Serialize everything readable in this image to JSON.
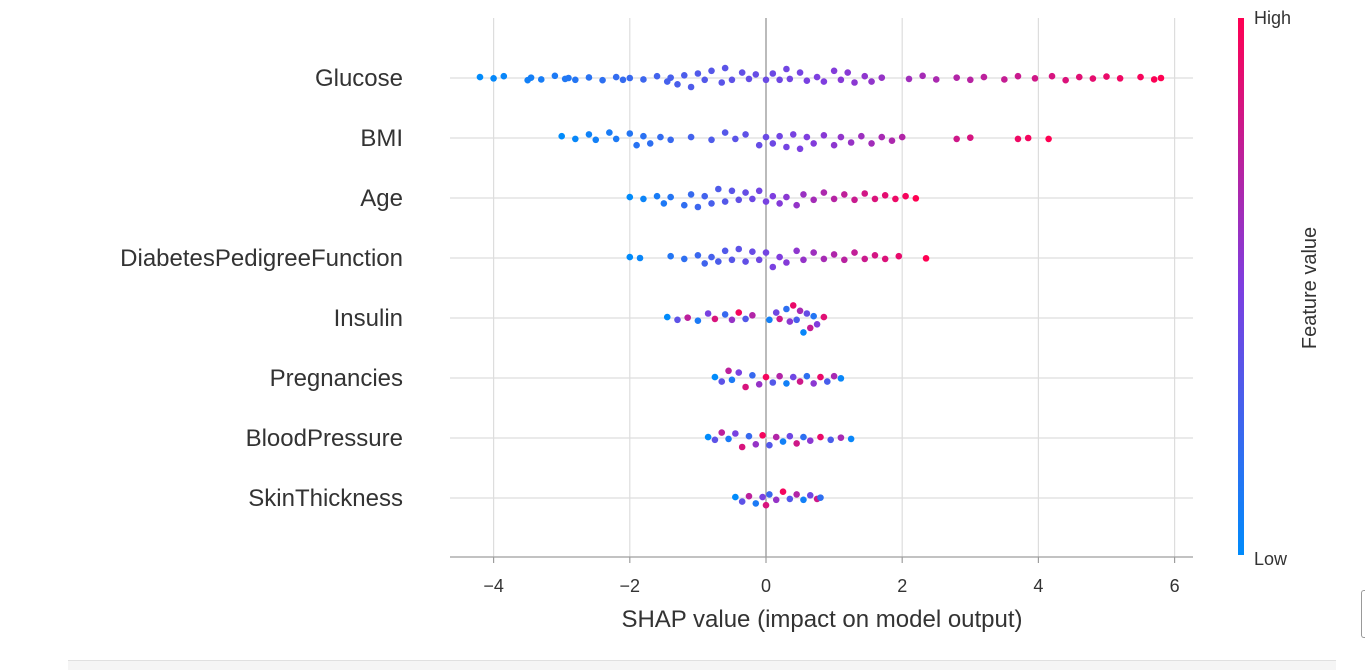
{
  "chart_data": {
    "type": "scatter",
    "subtype": "shap-beeswarm",
    "title": "",
    "xlabel": "SHAP value (impact on model output)",
    "ylabel": "",
    "xlim": [
      -4.6,
      6.35
    ],
    "xticks": [
      -4,
      -2,
      0,
      2,
      4,
      6
    ],
    "xtick_labels": [
      "−4",
      "−2",
      "0",
      "2",
      "4",
      "6"
    ],
    "features": [
      "Glucose",
      "BMI",
      "Age",
      "DiabetesPedigreeFunction",
      "Insulin",
      "Pregnancies",
      "BloodPressure",
      "SkinThickness"
    ],
    "colorbar": {
      "title": "Feature value",
      "high_label": "High",
      "low_label": "Low",
      "low_color": "#008bfb",
      "high_color": "#ff0052"
    },
    "grid": true,
    "series": [
      {
        "feature": "Glucose",
        "points": [
          [
            -4.2,
            0.05
          ],
          [
            -4.0,
            0.02
          ],
          [
            -3.85,
            0.1
          ],
          [
            -3.5,
            0.12
          ],
          [
            -3.45,
            0.02
          ],
          [
            -3.3,
            0.08
          ],
          [
            -3.1,
            0.12
          ],
          [
            -2.95,
            0.05
          ],
          [
            -2.9,
            0.0
          ],
          [
            -2.8,
            0.1
          ],
          [
            -2.6,
            0.03
          ],
          [
            -2.4,
            0.12
          ],
          [
            -2.2,
            0.05
          ],
          [
            -2.1,
            0.1
          ],
          [
            -2.0,
            0.0
          ],
          [
            -1.8,
            0.08
          ],
          [
            -1.6,
            0.1
          ],
          [
            -1.45,
            0.2
          ],
          [
            -1.4,
            0.02
          ],
          [
            -1.3,
            0.35
          ],
          [
            -1.2,
            0.15
          ],
          [
            -1.1,
            0.5
          ],
          [
            -1.0,
            0.25
          ],
          [
            -0.9,
            0.1
          ],
          [
            -0.8,
            0.4
          ],
          [
            -0.65,
            0.25
          ],
          [
            -0.6,
            0.55
          ],
          [
            -0.5,
            0.1
          ],
          [
            -0.35,
            0.3
          ],
          [
            -0.25,
            0.05
          ],
          [
            -0.15,
            0.2
          ],
          [
            0.0,
            0.1
          ],
          [
            0.1,
            0.25
          ],
          [
            0.2,
            0.1
          ],
          [
            0.3,
            0.5
          ],
          [
            0.35,
            0.05
          ],
          [
            0.5,
            0.3
          ],
          [
            0.6,
            0.15
          ],
          [
            0.75,
            0.05
          ],
          [
            0.85,
            0.2
          ],
          [
            1.0,
            0.4
          ],
          [
            1.1,
            0.1
          ],
          [
            1.2,
            0.3
          ],
          [
            1.3,
            0.25
          ],
          [
            1.45,
            0.1
          ],
          [
            1.55,
            0.2
          ],
          [
            1.7,
            0.02
          ],
          [
            2.1,
            0.05
          ],
          [
            2.3,
            0.12
          ],
          [
            2.5,
            0.08
          ],
          [
            2.8,
            0.02
          ],
          [
            3.0,
            0.1
          ],
          [
            3.2,
            0.05
          ],
          [
            3.5,
            0.08
          ],
          [
            3.7,
            0.1
          ],
          [
            3.95,
            0.02
          ],
          [
            4.2,
            0.1
          ],
          [
            4.4,
            0.12
          ],
          [
            4.6,
            0.05
          ],
          [
            4.8,
            0.03
          ],
          [
            5.0,
            0.08
          ],
          [
            5.2,
            0.02
          ],
          [
            5.5,
            0.05
          ],
          [
            5.7,
            0.08
          ],
          [
            5.8,
            0.0
          ]
        ]
      },
      {
        "feature": "BMI",
        "points": [
          [
            -3.0,
            0.1
          ],
          [
            -2.8,
            0.05
          ],
          [
            -2.6,
            0.2
          ],
          [
            -2.5,
            0.1
          ],
          [
            -2.3,
            0.3
          ],
          [
            -2.2,
            0.05
          ],
          [
            -2.0,
            0.25
          ],
          [
            -1.9,
            0.4
          ],
          [
            -1.8,
            0.1
          ],
          [
            -1.7,
            0.3
          ],
          [
            -1.55,
            0.05
          ],
          [
            -1.4,
            0.1
          ],
          [
            -1.1,
            0.05
          ],
          [
            -0.8,
            0.1
          ],
          [
            -0.6,
            0.3
          ],
          [
            -0.45,
            0.05
          ],
          [
            -0.3,
            0.2
          ],
          [
            -0.1,
            0.4
          ],
          [
            0.0,
            0.05
          ],
          [
            0.1,
            0.3
          ],
          [
            0.2,
            0.1
          ],
          [
            0.3,
            0.5
          ],
          [
            0.4,
            0.2
          ],
          [
            0.5,
            0.6
          ],
          [
            0.6,
            0.05
          ],
          [
            0.7,
            0.3
          ],
          [
            0.85,
            0.15
          ],
          [
            1.0,
            0.4
          ],
          [
            1.1,
            0.05
          ],
          [
            1.25,
            0.25
          ],
          [
            1.4,
            0.1
          ],
          [
            1.55,
            0.3
          ],
          [
            1.7,
            0.05
          ],
          [
            1.85,
            0.15
          ],
          [
            2.0,
            0.05
          ],
          [
            2.8,
            0.05
          ],
          [
            3.0,
            0.02
          ],
          [
            3.7,
            0.05
          ],
          [
            3.85,
            0.0
          ],
          [
            4.15,
            0.05
          ]
        ]
      },
      {
        "feature": "Age",
        "points": [
          [
            -2.0,
            0.05
          ],
          [
            -1.8,
            0.05
          ],
          [
            -1.6,
            0.1
          ],
          [
            -1.5,
            0.3
          ],
          [
            -1.4,
            0.05
          ],
          [
            -1.2,
            0.4
          ],
          [
            -1.1,
            0.2
          ],
          [
            -1.0,
            0.5
          ],
          [
            -0.9,
            0.1
          ],
          [
            -0.8,
            0.3
          ],
          [
            -0.7,
            0.5
          ],
          [
            -0.6,
            0.2
          ],
          [
            -0.5,
            0.4
          ],
          [
            -0.4,
            0.1
          ],
          [
            -0.3,
            0.3
          ],
          [
            -0.2,
            0.05
          ],
          [
            -0.1,
            0.4
          ],
          [
            0.0,
            0.2
          ],
          [
            0.1,
            0.1
          ],
          [
            0.2,
            0.3
          ],
          [
            0.3,
            0.05
          ],
          [
            0.45,
            0.4
          ],
          [
            0.55,
            0.2
          ],
          [
            0.7,
            0.1
          ],
          [
            0.85,
            0.3
          ],
          [
            1.0,
            0.05
          ],
          [
            1.15,
            0.2
          ],
          [
            1.3,
            0.1
          ],
          [
            1.45,
            0.25
          ],
          [
            1.6,
            0.05
          ],
          [
            1.75,
            0.15
          ],
          [
            1.9,
            0.05
          ],
          [
            2.05,
            0.1
          ],
          [
            2.2,
            0.02
          ]
        ]
      },
      {
        "feature": "DiabetesPedigreeFunction",
        "points": [
          [
            -2.0,
            0.05
          ],
          [
            -1.85,
            0.0
          ],
          [
            -1.4,
            0.1
          ],
          [
            -1.2,
            0.05
          ],
          [
            -1.0,
            0.15
          ],
          [
            -0.9,
            0.3
          ],
          [
            -0.8,
            0.05
          ],
          [
            -0.7,
            0.2
          ],
          [
            -0.6,
            0.4
          ],
          [
            -0.5,
            0.1
          ],
          [
            -0.4,
            0.5
          ],
          [
            -0.3,
            0.2
          ],
          [
            -0.2,
            0.35
          ],
          [
            -0.1,
            0.1
          ],
          [
            0.0,
            0.3
          ],
          [
            0.1,
            0.5
          ],
          [
            0.2,
            0.05
          ],
          [
            0.3,
            0.25
          ],
          [
            0.45,
            0.4
          ],
          [
            0.55,
            0.1
          ],
          [
            0.7,
            0.3
          ],
          [
            0.85,
            0.05
          ],
          [
            1.0,
            0.2
          ],
          [
            1.15,
            0.1
          ],
          [
            1.3,
            0.3
          ],
          [
            1.45,
            0.05
          ],
          [
            1.6,
            0.15
          ],
          [
            1.75,
            0.05
          ],
          [
            1.95,
            0.1
          ],
          [
            2.35,
            0.02
          ]
        ]
      },
      {
        "feature": "Insulin",
        "points": [
          [
            -1.45,
            0.05
          ],
          [
            -1.3,
            0.1
          ],
          [
            -1.15,
            0.02
          ],
          [
            -1.0,
            0.15
          ],
          [
            -0.85,
            0.25
          ],
          [
            -0.75,
            0.05
          ],
          [
            -0.6,
            0.2
          ],
          [
            -0.5,
            0.1
          ],
          [
            -0.4,
            0.3
          ],
          [
            -0.3,
            0.05
          ],
          [
            -0.2,
            0.15
          ],
          [
            0.05,
            0.1
          ],
          [
            0.15,
            0.3
          ],
          [
            0.2,
            0.05
          ],
          [
            0.3,
            0.5
          ],
          [
            0.35,
            0.2
          ],
          [
            0.4,
            0.7
          ],
          [
            0.45,
            0.1
          ],
          [
            0.5,
            0.4
          ],
          [
            0.55,
            0.8
          ],
          [
            0.6,
            0.25
          ],
          [
            0.65,
            0.55
          ],
          [
            0.7,
            0.1
          ],
          [
            0.75,
            0.35
          ],
          [
            0.85,
            0.05
          ]
        ]
      },
      {
        "feature": "Pregnancies",
        "points": [
          [
            -0.75,
            0.05
          ],
          [
            -0.65,
            0.2
          ],
          [
            -0.55,
            0.4
          ],
          [
            -0.5,
            0.1
          ],
          [
            -0.4,
            0.3
          ],
          [
            -0.3,
            0.5
          ],
          [
            -0.2,
            0.15
          ],
          [
            -0.1,
            0.35
          ],
          [
            0.0,
            0.05
          ],
          [
            0.1,
            0.25
          ],
          [
            0.2,
            0.1
          ],
          [
            0.3,
            0.3
          ],
          [
            0.4,
            0.05
          ],
          [
            0.5,
            0.2
          ],
          [
            0.6,
            0.1
          ],
          [
            0.7,
            0.3
          ],
          [
            0.8,
            0.05
          ],
          [
            0.9,
            0.2
          ],
          [
            1.0,
            0.1
          ],
          [
            1.1,
            0.02
          ]
        ]
      },
      {
        "feature": "BloodPressure",
        "points": [
          [
            -0.85,
            0.05
          ],
          [
            -0.75,
            0.1
          ],
          [
            -0.65,
            0.3
          ],
          [
            -0.55,
            0.05
          ],
          [
            -0.45,
            0.25
          ],
          [
            -0.35,
            0.5
          ],
          [
            -0.25,
            0.1
          ],
          [
            -0.15,
            0.35
          ],
          [
            -0.05,
            0.15
          ],
          [
            0.05,
            0.4
          ],
          [
            0.15,
            0.05
          ],
          [
            0.25,
            0.2
          ],
          [
            0.35,
            0.1
          ],
          [
            0.45,
            0.3
          ],
          [
            0.55,
            0.05
          ],
          [
            0.65,
            0.15
          ],
          [
            0.8,
            0.05
          ],
          [
            0.95,
            0.1
          ],
          [
            1.1,
            0.02
          ],
          [
            1.25,
            0.05
          ]
        ]
      },
      {
        "feature": "SkinThickness",
        "points": [
          [
            -0.45,
            0.05
          ],
          [
            -0.35,
            0.2
          ],
          [
            -0.25,
            0.1
          ],
          [
            -0.15,
            0.3
          ],
          [
            -0.05,
            0.05
          ],
          [
            0.0,
            0.4
          ],
          [
            0.05,
            0.2
          ],
          [
            0.15,
            0.1
          ],
          [
            0.25,
            0.35
          ],
          [
            0.35,
            0.05
          ],
          [
            0.45,
            0.2
          ],
          [
            0.55,
            0.1
          ],
          [
            0.65,
            0.15
          ],
          [
            0.75,
            0.05
          ],
          [
            0.8,
            0.02
          ]
        ]
      }
    ]
  }
}
